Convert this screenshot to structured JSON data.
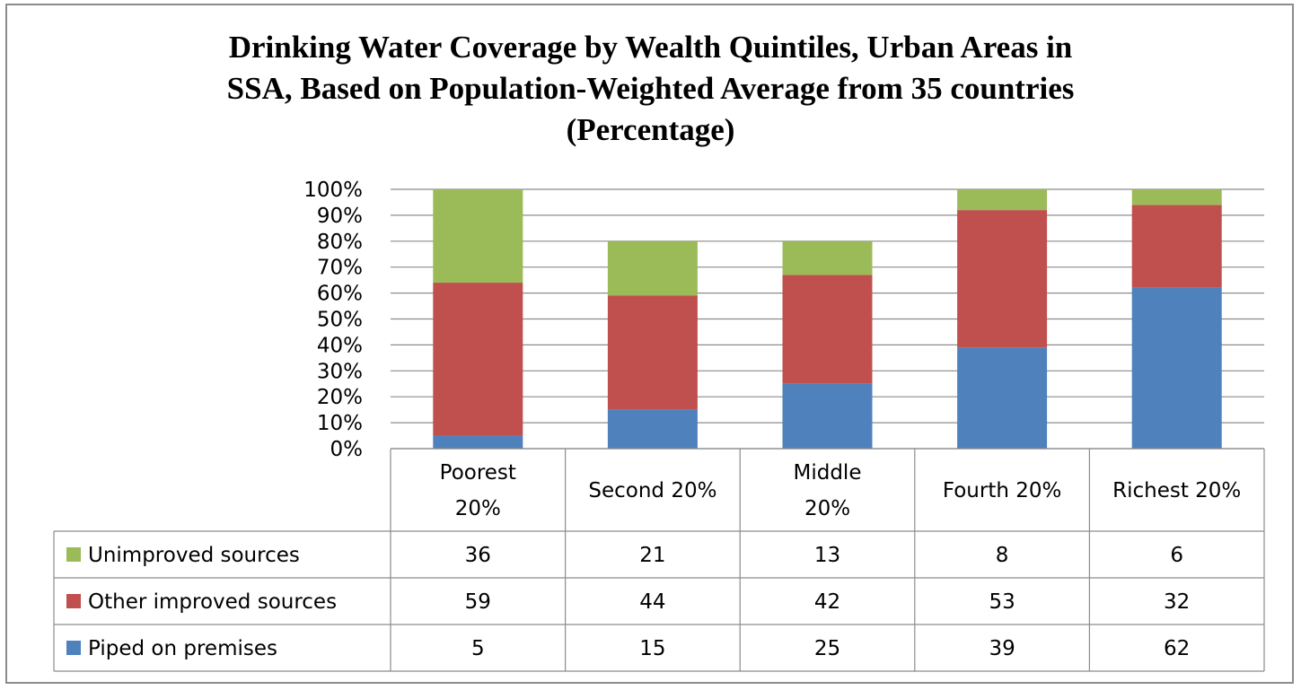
{
  "chart_data": {
    "type": "bar",
    "stacked": true,
    "title_lines": [
      "Drinking Water Coverage by Wealth Quintiles, Urban Areas in",
      "SSA, Based on Population-Weighted Average from 35 countries",
      "(Percentage)"
    ],
    "categories": [
      [
        "Poorest",
        "20%"
      ],
      [
        "Second  20%"
      ],
      [
        "Middle",
        "20%"
      ],
      [
        "Fourth   20%"
      ],
      [
        "Richest  20%"
      ]
    ],
    "series": [
      {
        "name": "Piped on premises",
        "color": "#4f81bd",
        "values": [
          5,
          15,
          25,
          39,
          62
        ]
      },
      {
        "name": "Other improved sources",
        "color": "#c0504d",
        "values": [
          59,
          44,
          42,
          53,
          32
        ]
      },
      {
        "name": "Unimproved sources",
        "color": "#9bbb59",
        "values": [
          36,
          21,
          13,
          8,
          6
        ]
      }
    ],
    "ylim": [
      0,
      100
    ],
    "yticks": [
      "0%",
      "10%",
      "20%",
      "30%",
      "40%",
      "50%",
      "60%",
      "70%",
      "80%",
      "90%",
      "100%"
    ],
    "grid": true,
    "legend": "data-table",
    "table_row_order": [
      2,
      1,
      0
    ]
  }
}
